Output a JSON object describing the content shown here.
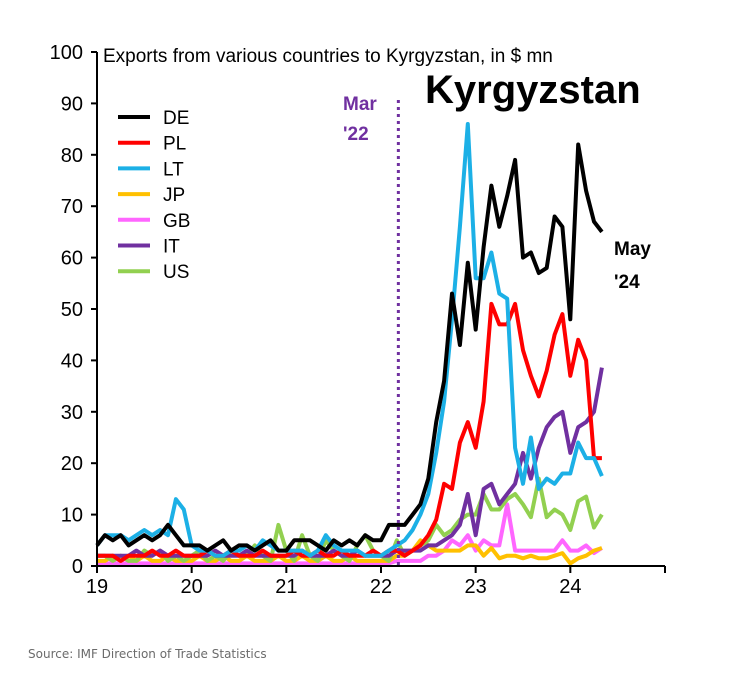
{
  "chart_data": {
    "type": "line",
    "title": "Exports from various countries to Kyrgyzstan, in $ mn",
    "headline": "Kyrgyzstan",
    "xlabel": "",
    "ylabel": "",
    "x_start": "2019-01",
    "frequency": "monthly",
    "xlim": [
      19,
      25
    ],
    "ylim": [
      0,
      100
    ],
    "x_ticks": [
      "19",
      "20",
      "21",
      "22",
      "23",
      "24"
    ],
    "y_ticks": [
      "0",
      "10",
      "20",
      "30",
      "40",
      "50",
      "60",
      "70",
      "80",
      "90",
      "100"
    ],
    "grid": false,
    "legend_position": "top-left",
    "annotations": [
      {
        "text_lines": [
          "Mar",
          "'22"
        ],
        "color": "#7030a0",
        "at_month": 38.2,
        "type": "vertical-dotted-line"
      },
      {
        "text_lines": [
          "May",
          "'24"
        ],
        "color": "#000000"
      }
    ],
    "series": [
      {
        "name": "DE",
        "color": "#000000",
        "values": [
          4,
          6,
          5,
          6,
          4,
          5,
          6,
          5,
          6,
          8,
          6,
          4,
          4,
          4,
          3,
          4,
          5,
          3,
          4,
          4,
          3,
          4,
          5,
          3,
          3,
          5,
          5,
          5,
          4,
          3,
          5,
          4,
          5,
          4,
          6,
          5,
          5,
          8,
          8,
          8,
          10,
          12,
          17,
          28,
          36,
          53,
          43,
          59,
          46,
          62,
          74,
          66,
          72,
          79,
          60,
          61,
          57,
          58,
          68,
          66,
          48,
          82,
          73,
          67,
          65
        ]
      },
      {
        "name": "PL",
        "color": "#ff0000",
        "values": [
          2,
          2,
          2,
          1,
          2,
          2,
          2,
          3,
          2,
          2,
          3,
          2,
          2,
          2,
          3,
          2,
          2,
          3,
          2,
          2,
          2,
          3,
          2,
          2,
          2,
          3,
          2,
          2,
          3,
          2,
          2,
          3,
          2,
          2,
          2,
          3,
          2,
          3,
          3,
          2,
          3,
          4,
          6,
          9,
          16,
          15,
          24,
          28,
          23,
          32,
          51,
          47,
          47,
          51,
          42,
          37,
          33,
          38,
          45,
          49,
          37,
          44,
          40,
          21,
          21
        ]
      },
      {
        "name": "LT",
        "color": "#1cb0e6",
        "values": [
          4,
          6,
          6,
          6,
          5,
          6,
          7,
          6,
          7,
          6,
          13,
          11,
          4,
          3,
          3,
          2,
          2,
          3,
          3,
          4,
          3,
          5,
          4,
          3,
          3,
          3,
          3,
          2,
          3,
          6,
          4,
          3,
          3,
          3,
          2,
          2,
          2,
          3,
          4,
          5,
          7,
          10,
          14,
          22,
          32,
          48,
          66,
          86,
          56,
          56,
          61,
          53,
          52,
          23,
          16,
          25,
          15,
          17,
          16,
          18,
          18,
          24,
          21,
          21,
          17.5
        ]
      },
      {
        "name": "JP",
        "color": "#ffc000",
        "values": [
          1,
          1,
          2,
          1,
          2,
          1,
          2,
          1,
          1,
          2,
          1,
          1,
          1,
          2,
          1,
          1,
          2,
          1,
          1,
          2,
          1,
          1,
          1,
          2,
          1,
          1,
          2,
          1,
          1,
          2,
          1,
          1,
          2,
          1,
          1,
          1,
          1,
          1,
          2,
          2,
          3,
          5,
          4,
          3,
          3,
          3,
          3,
          4,
          4,
          2,
          3.5,
          1.5,
          2,
          2,
          1.5,
          2,
          1.5,
          1.5,
          2,
          2.5,
          0.5,
          1.5,
          2,
          3,
          3.5
        ]
      },
      {
        "name": "GB",
        "color": "#ff66ff",
        "values": [
          0.5,
          0.5,
          0.5,
          0.5,
          0.5,
          0.5,
          0.5,
          0.5,
          0.5,
          0.5,
          0.5,
          0.5,
          0.5,
          0.5,
          0.5,
          0.5,
          0.5,
          0.5,
          0.5,
          0.5,
          0.5,
          0.5,
          0.5,
          0.5,
          0.5,
          0.5,
          0.5,
          0.5,
          0.5,
          0.5,
          0.5,
          0.5,
          0.5,
          0.5,
          0.5,
          0.5,
          0.5,
          0.5,
          1,
          1,
          1,
          1,
          2,
          2,
          3,
          5,
          4,
          6,
          3,
          5,
          4,
          4,
          12,
          3,
          3,
          3,
          3,
          3,
          3,
          5,
          3,
          3,
          4,
          2.5,
          3.5
        ]
      },
      {
        "name": "IT",
        "color": "#7030a0",
        "values": [
          2,
          2,
          2,
          2,
          2,
          3,
          2,
          2,
          3,
          2,
          2,
          2,
          2,
          2,
          2,
          3,
          2,
          2,
          2,
          3,
          2,
          2,
          2,
          2,
          2,
          2,
          3,
          2,
          2,
          2,
          3,
          2,
          2,
          3,
          2,
          2,
          2,
          2,
          3,
          3,
          3,
          3,
          4,
          4,
          5,
          6,
          8,
          14,
          6,
          15,
          16,
          12,
          14,
          16,
          22,
          17,
          23,
          27,
          29,
          30,
          22,
          27,
          28,
          30,
          38.6
        ]
      },
      {
        "name": "US",
        "color": "#92d050",
        "values": [
          2,
          2,
          1,
          2,
          1,
          1,
          3,
          2,
          3,
          1,
          2,
          1,
          2,
          3,
          1,
          2,
          1,
          3,
          2,
          2,
          4,
          2,
          1,
          8,
          3,
          1,
          6,
          2,
          1,
          5,
          3,
          2,
          1,
          4,
          6,
          3,
          2,
          1,
          5,
          2,
          3,
          4,
          5,
          8,
          6,
          7,
          9,
          10,
          10,
          14,
          11,
          11,
          13,
          14,
          12,
          9.5,
          17,
          9.5,
          11,
          10,
          7,
          12.6,
          13.5,
          7.5,
          10
        ]
      }
    ]
  },
  "source": "Source: IMF Direction of Trade Statistics"
}
